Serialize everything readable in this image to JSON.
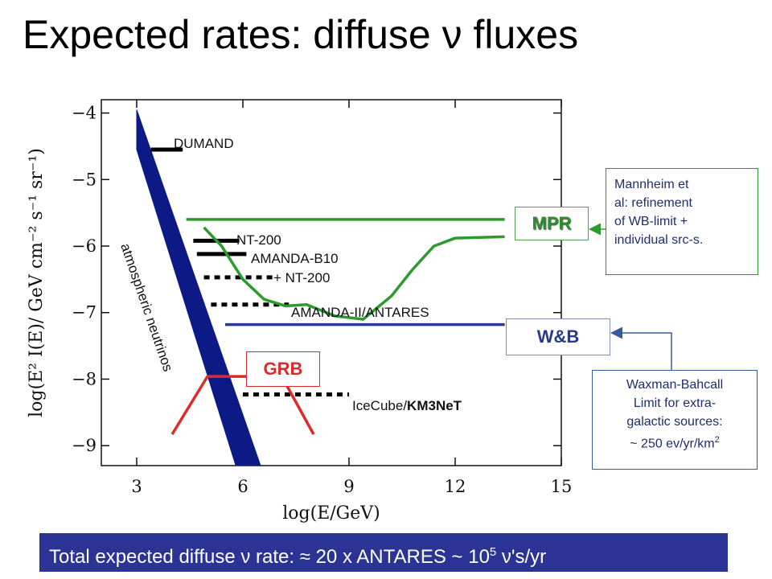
{
  "slide": {
    "title": "Expected rates: diffuse ν fluxes"
  },
  "chart_data": {
    "type": "line",
    "xlabel": "log(E/GeV)",
    "ylabel": "log(E² I(E)/ GeV cm⁻² s⁻¹ sr⁻¹)",
    "xlim": [
      2,
      15
    ],
    "ylim": [
      -9.3,
      -3.8
    ],
    "x_ticks": [
      3,
      6,
      9,
      12,
      15
    ],
    "y_ticks": [
      -4,
      -5,
      -6,
      -7,
      -8,
      -9
    ],
    "grid": false,
    "series": [
      {
        "name": "atmospheric neutrinos",
        "kind": "band",
        "color": "#0d1a86",
        "upper": [
          [
            3.0,
            -3.95
          ],
          [
            6.5,
            -9.3
          ]
        ],
        "lower": [
          [
            3.0,
            -4.55
          ],
          [
            5.8,
            -9.3
          ]
        ]
      },
      {
        "name": "DUMAND",
        "kind": "limit",
        "style": "solid",
        "color": "#000000",
        "x": [
          3.4,
          4.3
        ],
        "y": -4.55
      },
      {
        "name": "NT-200",
        "kind": "limit",
        "style": "solid",
        "color": "#000000",
        "x": [
          4.6,
          5.9
        ],
        "y": -5.92
      },
      {
        "name": "AMANDA-B10",
        "kind": "limit",
        "style": "solid",
        "color": "#000000",
        "x": [
          4.7,
          6.1
        ],
        "y": -6.12
      },
      {
        "name": "AMANDA-B10 + NT-200",
        "kind": "limit",
        "style": "dotted",
        "color": "#000000",
        "x": [
          4.9,
          6.9
        ],
        "y": -6.47
      },
      {
        "name": "AMANDA-II/ANTARES",
        "kind": "limit",
        "style": "dotted",
        "color": "#000000",
        "x": [
          5.1,
          7.3
        ],
        "y": -6.88
      },
      {
        "name": "IceCube/KM3NeT",
        "kind": "limit",
        "style": "dotted",
        "color": "#000000",
        "x": [
          6.0,
          9.0
        ],
        "y": -8.23
      },
      {
        "name": "MPR",
        "kind": "line",
        "color": "#2d9a2d",
        "points": [
          [
            4.4,
            -5.6
          ],
          [
            13.4,
            -5.6
          ]
        ]
      },
      {
        "name": "Mannheim et al",
        "kind": "line",
        "color": "#2d9a2d",
        "points": [
          [
            4.9,
            -5.72
          ],
          [
            5.4,
            -6.0
          ],
          [
            6.0,
            -6.5
          ],
          [
            6.6,
            -6.8
          ],
          [
            7.2,
            -6.9
          ],
          [
            7.8,
            -6.88
          ],
          [
            8.6,
            -7.05
          ],
          [
            9.4,
            -7.1
          ],
          [
            10.2,
            -6.75
          ],
          [
            10.8,
            -6.35
          ],
          [
            11.4,
            -6.0
          ],
          [
            12.0,
            -5.88
          ],
          [
            13.4,
            -5.86
          ]
        ]
      },
      {
        "name": "W&B",
        "kind": "line",
        "color": "#2a3a8a",
        "points": [
          [
            5.5,
            -7.18
          ],
          [
            13.4,
            -7.18
          ]
        ]
      },
      {
        "name": "GRB",
        "kind": "line",
        "color": "#dd2a2a",
        "points": [
          [
            4.0,
            -8.83
          ],
          [
            5.0,
            -7.96
          ],
          [
            7.1,
            -7.96
          ],
          [
            8.0,
            -8.83
          ]
        ]
      }
    ],
    "annotations": {
      "dumand": "DUMAND",
      "nt200": "NT-200",
      "amanda_b10": "AMANDA-B10",
      "plus_nt200": "+ NT-200",
      "amanda_antares": "AMANDA-II/ANTARES",
      "icecube_prefix": "IceCube/",
      "icecube_bold": "KM3NeT",
      "atmospheric": "atmospheric   neutrinos",
      "mpr": "MPR",
      "wb": "W&B",
      "grb": "GRB"
    }
  },
  "notes": {
    "mannheim": [
      "Mannheim et",
      "al: refinement",
      "of WB-limit +",
      "individual src-s."
    ],
    "waxman": [
      "Waxman-Bahcall",
      "Limit for extra-",
      "galactic sources:"
    ],
    "waxman_value": "~ 250 ev/yr/km",
    "waxman_sup": "2"
  },
  "footer": {
    "prefix": "Total expected diffuse ν rate: ≈ 20 x ANTARES ~ 10",
    "sup": "5",
    "suffix": " ν's/yr"
  }
}
